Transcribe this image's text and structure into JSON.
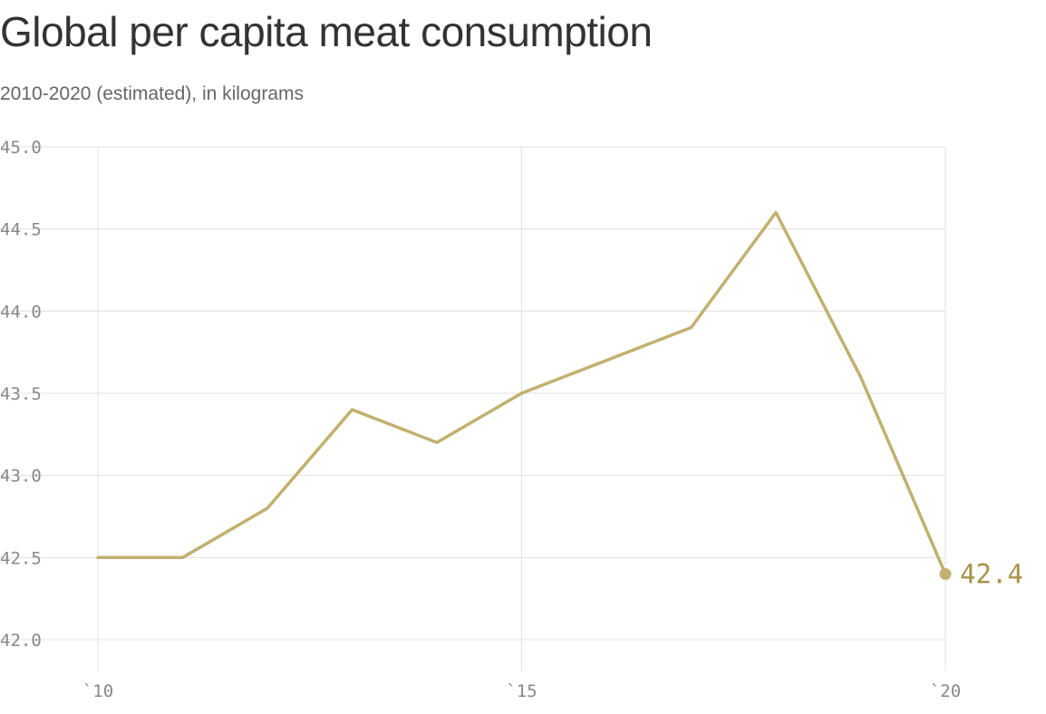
{
  "chart_data": {
    "type": "line",
    "title": "Global per capita meat consumption",
    "subtitle": "2010-2020 (estimated), in kilograms",
    "x": [
      2010,
      2011,
      2012,
      2013,
      2014,
      2015,
      2016,
      2017,
      2018,
      2019,
      2020
    ],
    "series": [
      {
        "values": [
          42.5,
          42.5,
          42.8,
          43.4,
          43.2,
          43.5,
          43.7,
          43.9,
          44.6,
          43.6,
          42.4
        ]
      }
    ],
    "xlim": [
      2010,
      2020
    ],
    "ylim": [
      42.0,
      45.0
    ],
    "x_ticks": [
      2010,
      2015,
      2020
    ],
    "x_tick_labels": [
      "`10",
      "`15",
      "`20"
    ],
    "y_ticks": [
      42.0,
      42.5,
      43.0,
      43.5,
      44.0,
      44.5,
      45.0
    ],
    "y_tick_labels": [
      "42.0",
      "42.5",
      "43.0",
      "43.5",
      "44.0",
      "44.5",
      "45.0"
    ],
    "end_label": "42.4",
    "grid": true,
    "colors": {
      "line": "#c2b06f",
      "end_label": "#a8924a",
      "grid": "#e0e0e0",
      "tick_text": "#888888"
    }
  }
}
